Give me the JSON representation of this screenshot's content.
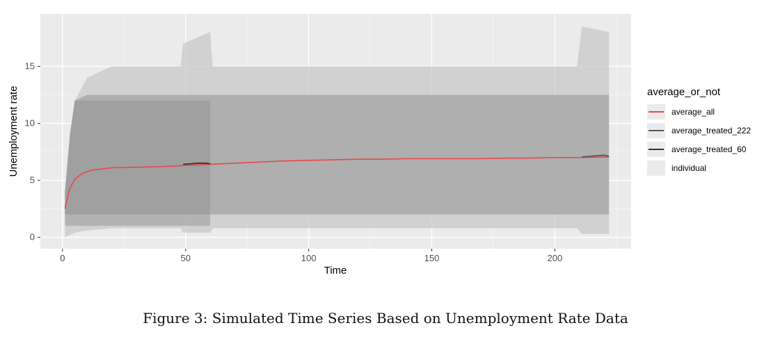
{
  "caption": "Figure 3: Simulated Time Series Based on Unemployment Rate Data",
  "chart_data": {
    "type": "line",
    "xlabel": "Time",
    "ylabel": "Unemployment rate",
    "xlim": [
      -9,
      231
    ],
    "ylim": [
      -1,
      19.6
    ],
    "x_ticks": [
      0,
      50,
      100,
      150,
      200
    ],
    "y_ticks": [
      0,
      5,
      10,
      15
    ],
    "grid": true,
    "legend": {
      "title": "average_or_not",
      "placement": "right",
      "entries": [
        {
          "label": "average_all",
          "color": "#e8474a"
        },
        {
          "label": "average_treated_222",
          "color": "#555555"
        },
        {
          "label": "average_treated_60",
          "color": "#333333"
        },
        {
          "label": "individual",
          "color": "#ebebeb"
        }
      ]
    },
    "individual_band": [
      {
        "x": 1,
        "low": 0.0,
        "high": 4.0
      },
      {
        "x": 3,
        "low": 0.2,
        "high": 9.0
      },
      {
        "x": 5,
        "low": 0.4,
        "high": 12.0
      },
      {
        "x": 10,
        "low": 0.6,
        "high": 14.0
      },
      {
        "x": 20,
        "low": 0.8,
        "high": 15.0
      },
      {
        "x": 48,
        "low": 0.8,
        "high": 15.0
      },
      {
        "x": 49,
        "low": 0.4,
        "high": 17.0
      },
      {
        "x": 60,
        "low": 0.4,
        "high": 18.0
      },
      {
        "x": 61,
        "low": 0.8,
        "high": 15.0
      },
      {
        "x": 209,
        "low": 0.8,
        "high": 15.0
      },
      {
        "x": 211,
        "low": 0.3,
        "high": 18.5
      },
      {
        "x": 222,
        "low": 0.3,
        "high": 18.0
      }
    ],
    "series": [
      {
        "name": "average_all",
        "x": [
          1,
          2,
          3,
          5,
          8,
          12,
          20,
          30,
          40,
          50,
          60,
          70,
          80,
          90,
          100,
          110,
          120,
          130,
          140,
          150,
          160,
          170,
          180,
          190,
          200,
          210,
          222
        ],
        "values": [
          2.5,
          3.5,
          4.3,
          5.1,
          5.6,
          5.9,
          6.1,
          6.15,
          6.2,
          6.3,
          6.4,
          6.5,
          6.6,
          6.7,
          6.75,
          6.8,
          6.85,
          6.85,
          6.9,
          6.9,
          6.9,
          6.9,
          6.95,
          6.95,
          7.0,
          7.0,
          7.05
        ]
      },
      {
        "name": "average_treated_222",
        "x": [
          211,
          214,
          217,
          220,
          222
        ],
        "values": [
          7.05,
          7.1,
          7.15,
          7.2,
          7.1
        ]
      },
      {
        "name": "average_treated_60",
        "x": [
          49,
          52,
          55,
          58,
          60
        ],
        "values": [
          6.4,
          6.45,
          6.5,
          6.5,
          6.45
        ]
      }
    ]
  }
}
